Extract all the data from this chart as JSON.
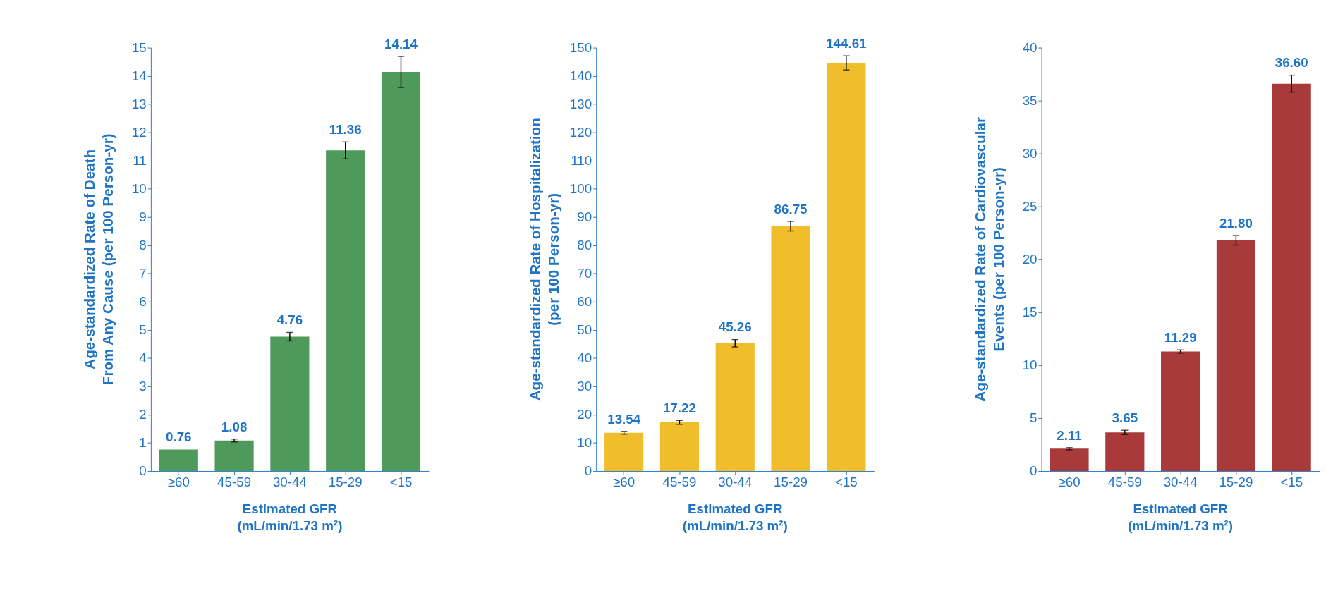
{
  "chart_data": [
    {
      "type": "bar",
      "categories": [
        "≥60",
        "45-59",
        "30-44",
        "15-29",
        "<15"
      ],
      "values": [
        0.76,
        1.08,
        4.76,
        11.36,
        14.14
      ],
      "value_labels": [
        "0.76",
        "1.08",
        "4.76",
        "11.36",
        "14.14"
      ],
      "errors": [
        null,
        0.05,
        0.15,
        0.3,
        0.55
      ],
      "color": "#4e9a5a",
      "ylabel": "Age-standardized Rate of Death\nFrom Any Cause (per 100 Person-yr)",
      "xlabel": "Estimated GFR\n(mL/min/1.73 m²)",
      "ylim": [
        0,
        15
      ],
      "yticks": [
        0,
        1,
        2,
        3,
        4,
        5,
        6,
        7,
        8,
        9,
        10,
        11,
        12,
        13,
        14,
        15
      ],
      "grid": false
    },
    {
      "type": "bar",
      "categories": [
        "≥60",
        "45-59",
        "30-44",
        "15-29",
        "<15"
      ],
      "values": [
        13.54,
        17.22,
        45.26,
        86.75,
        144.61
      ],
      "value_labels": [
        "13.54",
        "17.22",
        "45.26",
        "86.75",
        "144.61"
      ],
      "errors": [
        0.5,
        0.7,
        1.3,
        1.7,
        2.5
      ],
      "color": "#f0be2a",
      "ylabel": "Age-standardized Rate of Hospitalization\n(per 100 Person-yr)",
      "xlabel": "Estimated GFR\n(mL/min/1.73 m²)",
      "ylim": [
        0,
        150
      ],
      "yticks": [
        0,
        10,
        20,
        30,
        40,
        50,
        60,
        70,
        80,
        90,
        100,
        110,
        120,
        130,
        140,
        150
      ],
      "grid": false
    },
    {
      "type": "bar",
      "categories": [
        "≥60",
        "45-59",
        "30-44",
        "15-29",
        "<15"
      ],
      "values": [
        2.11,
        3.65,
        11.29,
        21.8,
        36.6
      ],
      "value_labels": [
        "2.11",
        "3.65",
        "11.29",
        "21.80",
        "36.60"
      ],
      "errors": [
        0.1,
        0.2,
        0.15,
        0.45,
        0.8
      ],
      "color": "#a83a3a",
      "ylabel": "Age-standardized Rate of Cardiovascular\nEvents (per 100 Person-yr)",
      "xlabel": "Estimated GFR\n(mL/min/1.73 m²)",
      "ylim": [
        0,
        40
      ],
      "yticks": [
        0,
        5,
        10,
        15,
        20,
        25,
        30,
        35,
        40
      ],
      "grid": false
    }
  ]
}
